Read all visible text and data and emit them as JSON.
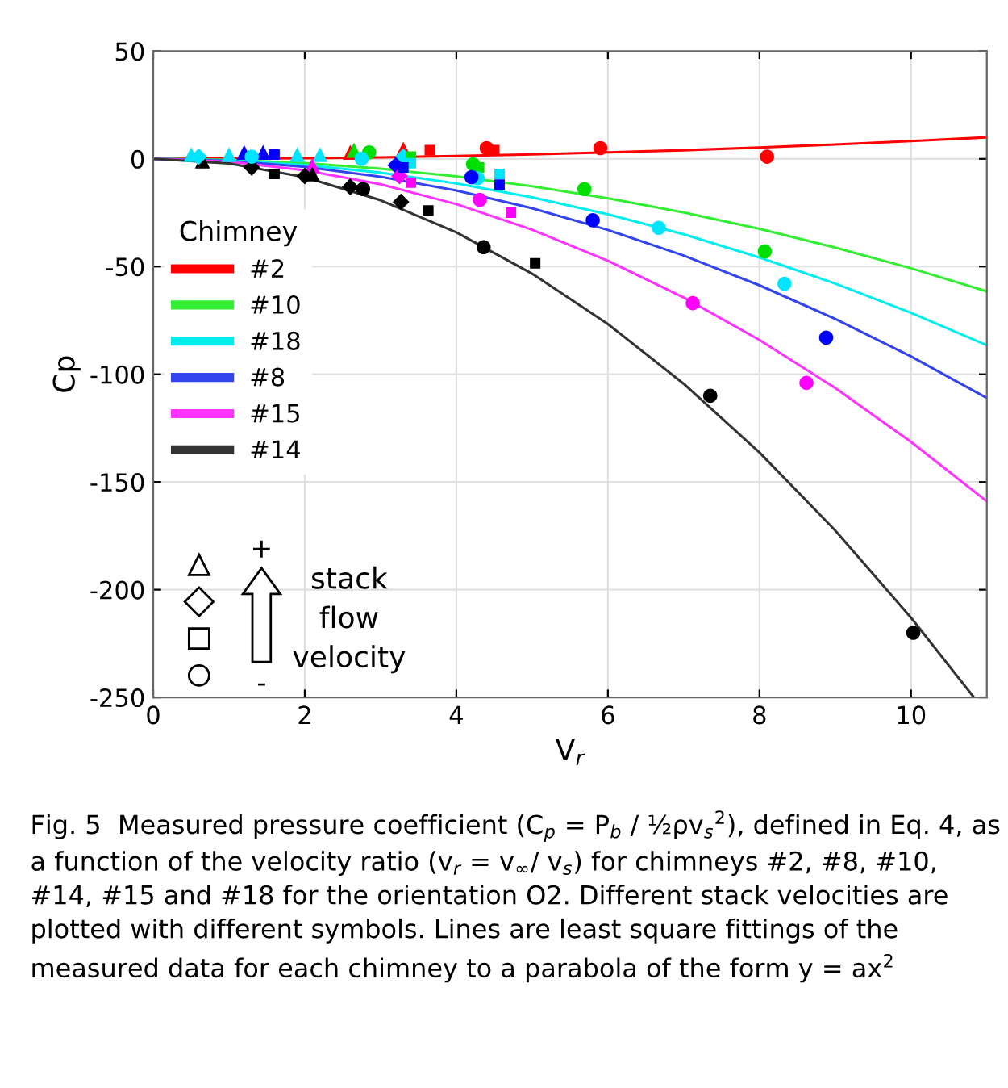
{
  "chart_data": {
    "type": "scatter",
    "xlabel": "V$_{r}$",
    "ylabel": "Cp",
    "legend_title": "Chimney",
    "xlim": [
      0,
      11
    ],
    "xticks": [
      0,
      2,
      4,
      6,
      8,
      10
    ],
    "ylim": [
      -250,
      50
    ],
    "yticks": [
      -250,
      -200,
      -150,
      -100,
      -50,
      0,
      50
    ],
    "grid": true,
    "legend": "left",
    "series": [
      {
        "name": "#2",
        "type": "line",
        "color": "#ff0000",
        "x": [
          0,
          1,
          2,
          3,
          4,
          5,
          6,
          7,
          8,
          9,
          10,
          11
        ],
        "values": [
          0,
          0.1,
          0.3,
          0.7,
          1.3,
          2.1,
          3,
          4,
          5.3,
          6.7,
          8.3,
          10
        ]
      },
      {
        "name": "#10",
        "type": "line",
        "color": "#33ee33",
        "x": [
          0,
          1,
          2,
          3,
          4,
          5,
          6,
          7,
          8,
          9,
          10,
          11
        ],
        "values": [
          0,
          -0.5,
          -2,
          -4.6,
          -8.1,
          -12.7,
          -18.3,
          -24.9,
          -32.5,
          -41.2,
          -50.8,
          -61.5
        ]
      },
      {
        "name": "#18",
        "type": "line",
        "color": "#00eeee",
        "x": [
          0,
          1,
          2,
          3,
          4,
          5,
          6,
          7,
          8,
          9,
          10,
          11
        ],
        "values": [
          0,
          -0.7,
          -2.9,
          -6.4,
          -11.4,
          -17.9,
          -25.7,
          -35,
          -45.8,
          -57.9,
          -71.5,
          -86.5
        ]
      },
      {
        "name": "#8",
        "type": "line",
        "color": "#3344ee",
        "x": [
          0,
          1,
          2,
          3,
          4,
          5,
          6,
          7,
          8,
          9,
          10,
          11
        ],
        "values": [
          0,
          -0.9,
          -3.7,
          -8.3,
          -14.7,
          -22.9,
          -33,
          -44.9,
          -58.7,
          -74.3,
          -91.7,
          -111
        ]
      },
      {
        "name": "#15",
        "type": "line",
        "color": "#ff33ff",
        "x": [
          0,
          1,
          2,
          3,
          4,
          5,
          6,
          7,
          8,
          9,
          10,
          11
        ],
        "values": [
          0,
          -1.3,
          -5.3,
          -11.8,
          -21,
          -32.9,
          -47.3,
          -64.4,
          -84.1,
          -106.4,
          -131.4,
          -159
        ]
      },
      {
        "name": "#14",
        "type": "line",
        "color": "#333333",
        "x": [
          0,
          1,
          2,
          3,
          4,
          5,
          6,
          7,
          8,
          9,
          10,
          10.83
        ],
        "values": [
          0,
          -2.1,
          -8.5,
          -19.2,
          -34.1,
          -53.3,
          -76.7,
          -104.4,
          -136.3,
          -172.5,
          -213,
          -250
        ]
      },
      {
        "marker": "triangle",
        "x": [
          2.6,
          3.3,
          2.65,
          0.5,
          1.0,
          1.9,
          2.2,
          1.2,
          1.45,
          2.1,
          0.65,
          2.1
        ],
        "values": [
          3,
          4.5,
          4,
          2,
          2,
          2,
          2,
          3,
          3,
          -3,
          -1,
          -7
        ],
        "colors": [
          "#ff0000",
          "#ff0000",
          "#00e000",
          "#00e5ff",
          "#00e5ff",
          "#00e5ff",
          "#00e5ff",
          "#0000ff",
          "#0000ff",
          "#ff00ff",
          "#000000",
          "#000000"
        ]
      },
      {
        "marker": "diamond",
        "x": [
          0.6,
          3.3,
          3.2,
          3.25,
          1.3,
          2.0,
          2.6,
          3.27
        ],
        "values": [
          1,
          1,
          -3,
          -8,
          -4,
          -8,
          -13,
          -20
        ],
        "colors": [
          "#00e5ff",
          "#00e5ff",
          "#0000ff",
          "#ff00ff",
          "#000000",
          "#000000",
          "#000000",
          "#000000"
        ]
      },
      {
        "marker": "square",
        "x": [
          3.65,
          4.5,
          3.4,
          4.3,
          3.4,
          4.57,
          1.6,
          3.3,
          4.57,
          3.4,
          4.72,
          1.6,
          3.63,
          5.04
        ],
        "values": [
          4,
          4,
          1,
          -4,
          -2,
          -7,
          2,
          -4,
          -12,
          -11,
          -25,
          -7,
          -24,
          -48.5
        ],
        "colors": [
          "#ff0000",
          "#ff0000",
          "#00e000",
          "#00e000",
          "#00e5ff",
          "#00e5ff",
          "#0000ff",
          "#0000ff",
          "#0000ff",
          "#ff00ff",
          "#ff00ff",
          "#000000",
          "#000000",
          "#000000"
        ]
      },
      {
        "marker": "circle",
        "x": [
          4.4,
          5.9,
          8.1,
          2.85,
          4.22,
          5.69,
          8.07,
          1.3,
          2.75,
          4.28,
          6.67,
          8.33,
          4.2,
          5.8,
          8.88,
          4.31,
          7.12,
          8.62,
          2.77,
          4.36,
          7.35,
          10.03
        ],
        "values": [
          5,
          5,
          1,
          3,
          -2.5,
          -14,
          -43,
          1,
          0,
          -9,
          -32,
          -58,
          -8.5,
          -28.5,
          -83,
          -19,
          -67,
          -104,
          -14,
          -41,
          -110,
          -220
        ],
        "colors": [
          "#ff0000",
          "#ff0000",
          "#ff0000",
          "#00e000",
          "#00e000",
          "#00e000",
          "#00e000",
          "#00e5ff",
          "#00e5ff",
          "#00e5ff",
          "#00e5ff",
          "#00e5ff",
          "#0000ff",
          "#0000ff",
          "#0000ff",
          "#ff00ff",
          "#ff00ff",
          "#ff00ff",
          "#000000",
          "#000000",
          "#000000",
          "#000000"
        ]
      }
    ],
    "annotations": [
      "+",
      "-",
      "stack\nflow\nvelocity",
      "Fig. 5  Measured pressure coefficient (C$_{p}$ = P$_{b}$ / ½ρv$_{s}$$^{2}$), defined in Eq. 4, as a function of the velocity ratio (v$_{r}$ = v$_{∞}$/ v$_{s}$) for chimneys #2, #8, #10, #14, #15 and #18 for the orientation O2. Different stack velocities are plotted with different symbols. Lines are least square fittings of the measured data for each chimney to a parabola of the form y = ax$^{2}$"
    ]
  }
}
